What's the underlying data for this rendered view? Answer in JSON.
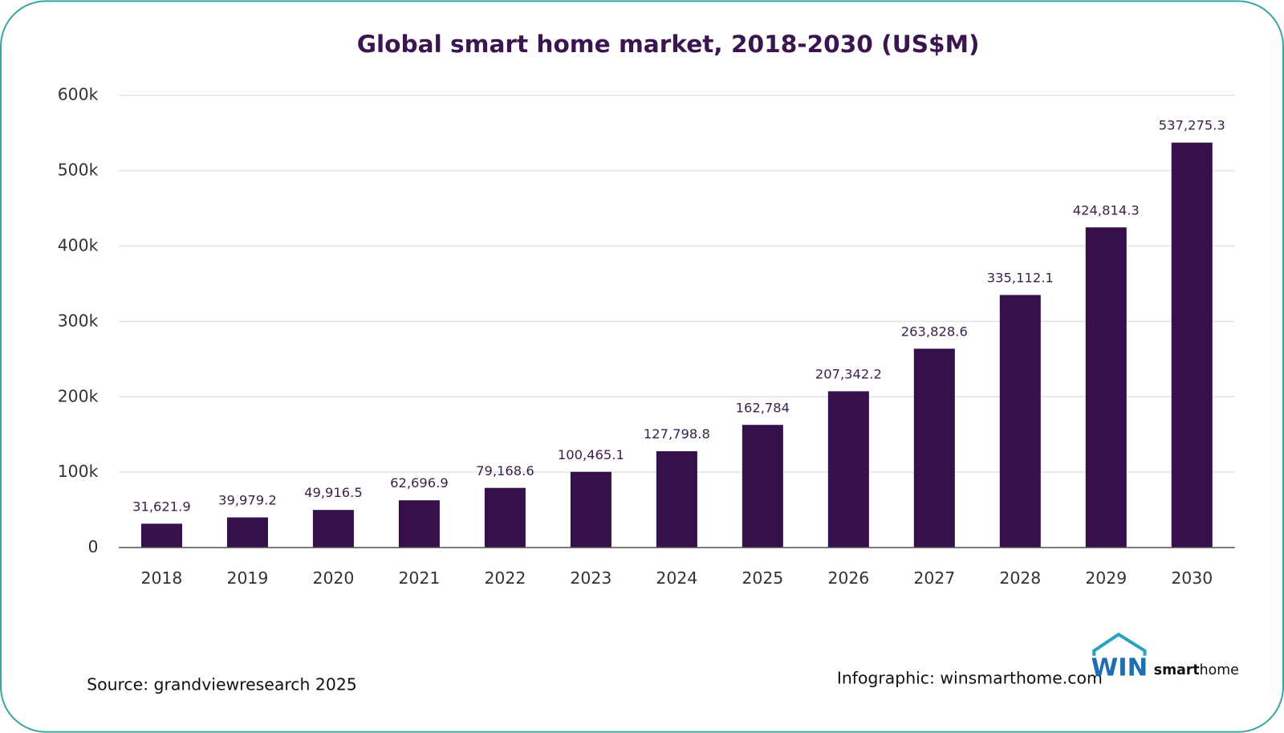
{
  "chart_data": {
    "type": "bar",
    "title": "Global smart home market, 2018-2030 (US$M)",
    "categories": [
      "2018",
      "2019",
      "2020",
      "2021",
      "2022",
      "2023",
      "2024",
      "2025",
      "2026",
      "2027",
      "2028",
      "2029",
      "2030"
    ],
    "values": [
      31621.9,
      39979.2,
      49916.5,
      62696.9,
      79168.6,
      100465.1,
      127798.8,
      162784,
      207342.2,
      263828.6,
      335112.1,
      424814.3,
      537275.3
    ],
    "value_labels": [
      "31,621.9",
      "39,979.2",
      "49,916.5",
      "62,696.9",
      "79,168.6",
      "100,465.1",
      "127,798.8",
      "162,784",
      "207,342.2",
      "263,828.6",
      "335,112.1",
      "424,814.3",
      "537,275.3"
    ],
    "color": "#35104a",
    "ylim": [
      0,
      600000
    ],
    "yticks": [
      0,
      {
        "value": 100000,
        "label": "100k"
      },
      {
        "value": 200000,
        "label": "200k"
      },
      {
        "value": 300000,
        "label": "300k"
      },
      {
        "value": 400000,
        "label": "400k"
      },
      {
        "value": 500000,
        "label": "500k"
      },
      {
        "value": 600000,
        "label": "600k"
      }
    ],
    "grid": true
  },
  "footer": {
    "source": "Source: grandviewresearch 2025",
    "credit": "Infographic: winsmarthome.com"
  },
  "logo": {
    "initials": "WIN",
    "brand_bold": "smart",
    "brand": "home"
  }
}
